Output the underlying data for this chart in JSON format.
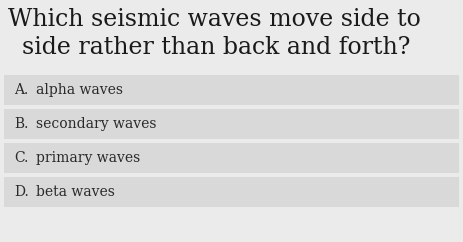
{
  "question_line1": "Which seismic waves move side to",
  "question_line2": "side rather than back and forth?",
  "options": [
    {
      "letter": "A.",
      "text": "alpha waves"
    },
    {
      "letter": "B.",
      "text": "secondary waves"
    },
    {
      "letter": "C.",
      "text": "primary waves"
    },
    {
      "letter": "D.",
      "text": "beta waves"
    }
  ],
  "background_color": "#ebebeb",
  "option_bg_color": "#d9d9d9",
  "question_font_size": 17,
  "option_font_size": 10,
  "text_color": "#1a1a1a",
  "option_text_color": "#2a2a2a",
  "fig_width": 4.63,
  "fig_height": 2.42,
  "dpi": 100
}
